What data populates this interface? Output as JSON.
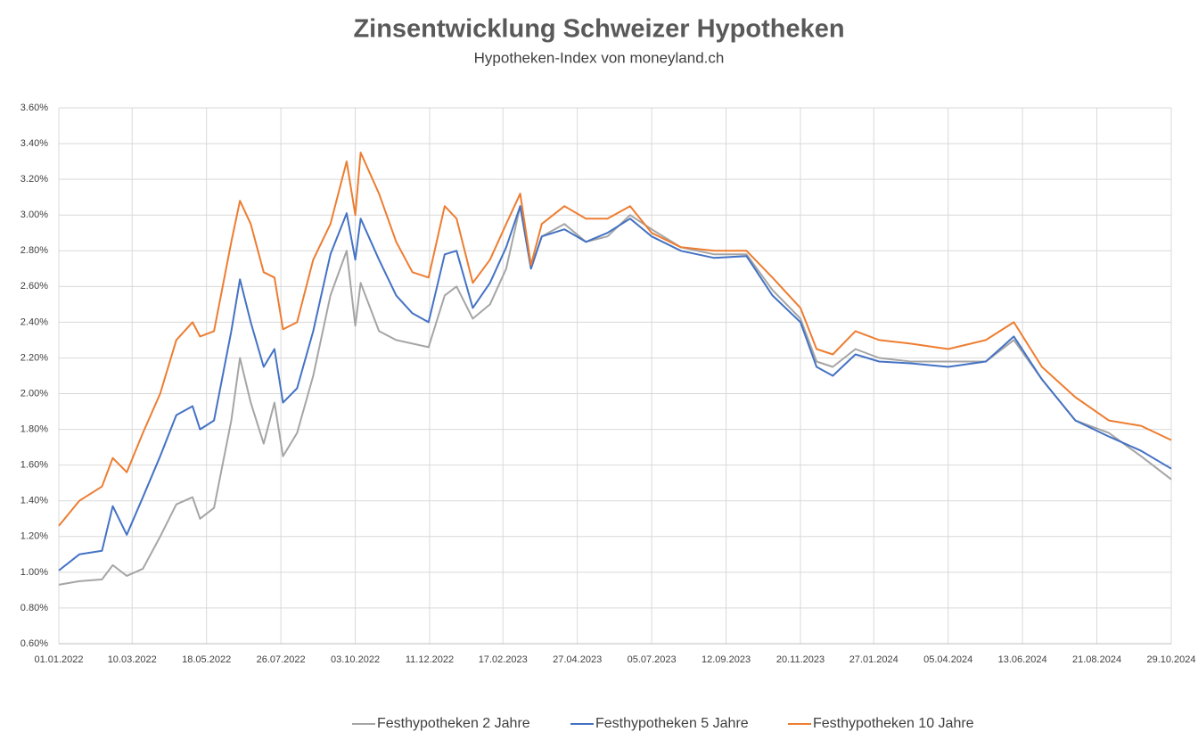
{
  "chart_data": {
    "type": "line",
    "title": "Zinsentwicklung Schweizer Hypotheken",
    "subtitle": "Hypotheken-Index von moneyland.ch",
    "x": [
      "2022-01-01",
      "2022-01-20",
      "2022-02-10",
      "2022-02-20",
      "2022-03-05",
      "2022-03-20",
      "2022-04-05",
      "2022-04-20",
      "2022-05-05",
      "2022-05-12",
      "2022-05-25",
      "2022-06-10",
      "2022-06-18",
      "2022-06-28",
      "2022-07-10",
      "2022-07-20",
      "2022-07-28",
      "2022-08-10",
      "2022-08-25",
      "2022-09-10",
      "2022-09-25",
      "2022-10-03",
      "2022-10-08",
      "2022-10-25",
      "2022-11-10",
      "2022-11-25",
      "2022-12-10",
      "2022-12-25",
      "2023-01-05",
      "2023-01-20",
      "2023-02-05",
      "2023-02-20",
      "2023-03-05",
      "2023-03-15",
      "2023-03-25",
      "2023-04-15",
      "2023-05-05",
      "2023-05-25",
      "2023-06-15",
      "2023-07-05",
      "2023-08-01",
      "2023-09-01",
      "2023-10-01",
      "2023-10-25",
      "2023-11-20",
      "2023-12-05",
      "2023-12-20",
      "2024-01-10",
      "2024-02-01",
      "2024-03-01",
      "2024-04-05",
      "2024-05-10",
      "2024-06-05",
      "2024-07-01",
      "2024-08-01",
      "2024-09-01",
      "2024-10-01",
      "2024-10-29"
    ],
    "series": [
      {
        "name": "Festhypotheken 2 Jahre",
        "color": "#a5a5a5",
        "values": [
          0.93,
          0.95,
          0.96,
          1.04,
          0.98,
          1.02,
          1.2,
          1.38,
          1.42,
          1.3,
          1.36,
          1.85,
          2.2,
          1.95,
          1.72,
          1.95,
          1.65,
          1.78,
          2.1,
          2.55,
          2.8,
          2.38,
          2.62,
          2.35,
          2.3,
          2.28,
          2.26,
          2.55,
          2.6,
          2.42,
          2.5,
          2.7,
          3.05,
          2.7,
          2.88,
          2.95,
          2.85,
          2.88,
          3.0,
          2.92,
          2.82,
          2.78,
          2.78,
          2.58,
          2.42,
          2.18,
          2.15,
          2.25,
          2.2,
          2.18,
          2.18,
          2.18,
          2.3,
          2.08,
          1.85,
          1.78,
          1.65,
          1.52
        ]
      },
      {
        "name": "Festhypotheken 5 Jahre",
        "color": "#4472c4",
        "values": [
          1.01,
          1.1,
          1.12,
          1.37,
          1.21,
          1.42,
          1.65,
          1.88,
          1.93,
          1.8,
          1.85,
          2.35,
          2.64,
          2.4,
          2.15,
          2.25,
          1.95,
          2.03,
          2.35,
          2.78,
          3.01,
          2.75,
          2.98,
          2.75,
          2.55,
          2.45,
          2.4,
          2.78,
          2.8,
          2.48,
          2.62,
          2.82,
          3.05,
          2.7,
          2.88,
          2.92,
          2.85,
          2.9,
          2.98,
          2.88,
          2.8,
          2.76,
          2.77,
          2.55,
          2.4,
          2.15,
          2.1,
          2.22,
          2.18,
          2.17,
          2.15,
          2.18,
          2.32,
          2.08,
          1.85,
          1.76,
          1.68,
          1.58
        ]
      },
      {
        "name": "Festhypotheken 10 Jahre",
        "color": "#ed7d31",
        "values": [
          1.26,
          1.4,
          1.48,
          1.64,
          1.56,
          1.78,
          2.0,
          2.3,
          2.4,
          2.32,
          2.35,
          2.85,
          3.08,
          2.95,
          2.68,
          2.65,
          2.36,
          2.4,
          2.75,
          2.95,
          3.3,
          3.0,
          3.35,
          3.12,
          2.85,
          2.68,
          2.65,
          3.05,
          2.98,
          2.62,
          2.75,
          2.95,
          3.12,
          2.72,
          2.95,
          3.05,
          2.98,
          2.98,
          3.05,
          2.9,
          2.82,
          2.8,
          2.8,
          2.65,
          2.48,
          2.25,
          2.22,
          2.35,
          2.3,
          2.28,
          2.25,
          2.3,
          2.4,
          2.15,
          1.98,
          1.85,
          1.82,
          1.74
        ]
      }
    ],
    "xlim": [
      "2022-01-01",
      "2024-10-29"
    ],
    "xticks": [
      {
        "value": "2022-01-01",
        "label": "01.01.2022"
      },
      {
        "value": "2022-03-10",
        "label": "10.03.2022"
      },
      {
        "value": "2022-05-18",
        "label": "18.05.2022"
      },
      {
        "value": "2022-07-26",
        "label": "26.07.2022"
      },
      {
        "value": "2022-10-03",
        "label": "03.10.2022"
      },
      {
        "value": "2022-12-11",
        "label": "11.12.2022"
      },
      {
        "value": "2023-02-17",
        "label": "17.02.2023"
      },
      {
        "value": "2023-04-27",
        "label": "27.04.2023"
      },
      {
        "value": "2023-07-05",
        "label": "05.07.2023"
      },
      {
        "value": "2023-09-12",
        "label": "12.09.2023"
      },
      {
        "value": "2023-11-20",
        "label": "20.11.2023"
      },
      {
        "value": "2024-01-27",
        "label": "27.01.2024"
      },
      {
        "value": "2024-04-05",
        "label": "05.04.2024"
      },
      {
        "value": "2024-06-13",
        "label": "13.06.2024"
      },
      {
        "value": "2024-08-21",
        "label": "21.08.2024"
      },
      {
        "value": "2024-10-29",
        "label": "29.10.2024"
      }
    ],
    "ylim": [
      0.6,
      3.6
    ],
    "yticks": [
      {
        "value": 0.6,
        "label": "0.60%"
      },
      {
        "value": 0.8,
        "label": "0.80%"
      },
      {
        "value": 1.0,
        "label": "1.00%"
      },
      {
        "value": 1.2,
        "label": "1.20%"
      },
      {
        "value": 1.4,
        "label": "1.40%"
      },
      {
        "value": 1.6,
        "label": "1.60%"
      },
      {
        "value": 1.8,
        "label": "1.80%"
      },
      {
        "value": 2.0,
        "label": "2.00%"
      },
      {
        "value": 2.2,
        "label": "2.20%"
      },
      {
        "value": 2.4,
        "label": "2.40%"
      },
      {
        "value": 2.6,
        "label": "2.60%"
      },
      {
        "value": 2.8,
        "label": "2.80%"
      },
      {
        "value": 3.0,
        "label": "3.00%"
      },
      {
        "value": 3.2,
        "label": "3.20%"
      },
      {
        "value": 3.4,
        "label": "3.40%"
      },
      {
        "value": 3.6,
        "label": "3.60%"
      }
    ],
    "grid": true,
    "legend": "bottom"
  }
}
